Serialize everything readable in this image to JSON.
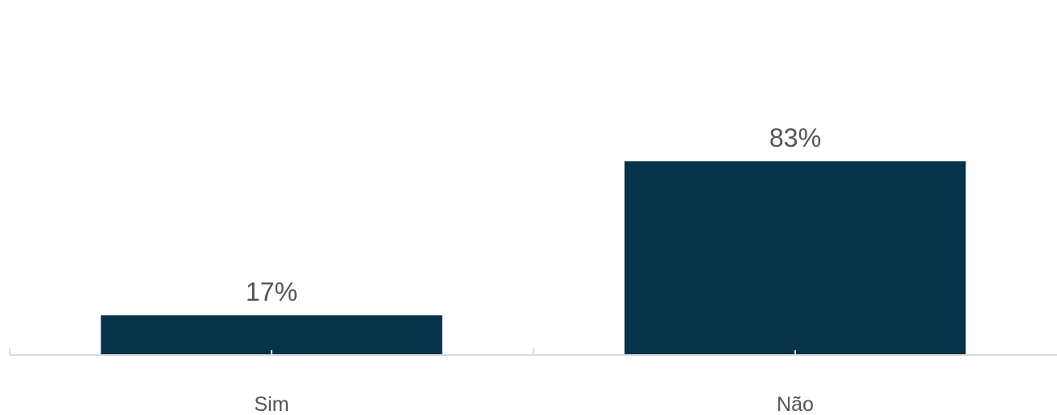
{
  "chart_data": {
    "type": "bar",
    "categories": [
      "Sim",
      "Não"
    ],
    "values": [
      17,
      83
    ],
    "value_labels": [
      "17%",
      "83%"
    ],
    "ylim": [
      0,
      100
    ],
    "grid": false,
    "colors": {
      "bar": "#06324a",
      "axis": "#d9d9d9",
      "text": "#555555"
    }
  }
}
